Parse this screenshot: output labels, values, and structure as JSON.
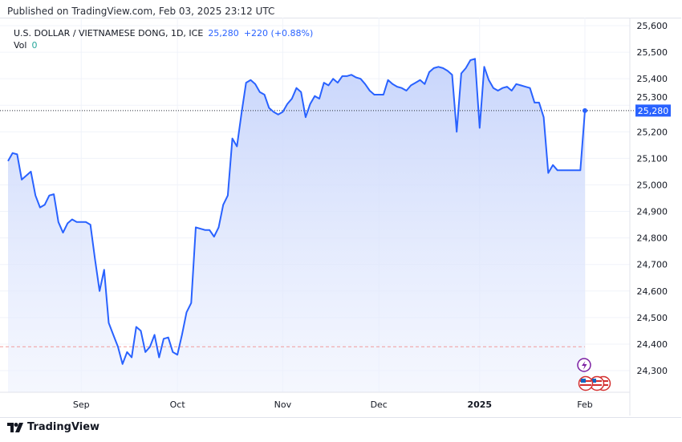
{
  "published": "Published on TradingView.com, Feb 03, 2025 23:12 UTC",
  "legend": {
    "symbol": "U.S. DOLLAR / VIETNAMESE DONG, 1D, ICE",
    "price": "25,280",
    "change": "+220 (+0.88%)",
    "vol_label": "Vol",
    "vol_value": "0"
  },
  "footer": {
    "brand": "TradingView",
    "logo_icon": "tradingview-logo-icon"
  },
  "colors": {
    "line": "#2962ff",
    "fill_top": "#c5d3fb",
    "fill_bottom": "#eef2fe",
    "ref_line": "#ef9a9a",
    "price_badge": "#2962ff"
  },
  "chart_data": {
    "type": "area",
    "title": "U.S. DOLLAR / VIETNAMESE DONG, 1D, ICE",
    "xlabel": "",
    "ylabel": "",
    "ylim": [
      24250,
      25650
    ],
    "grid": true,
    "y_ticks": [
      "24,300",
      "24,400",
      "24,500",
      "24,600",
      "24,700",
      "24,800",
      "24,900",
      "25,000",
      "25,100",
      "25,200",
      "25,300",
      "25,400",
      "25,500",
      "25,600"
    ],
    "y_tick_values": [
      24300,
      24400,
      24500,
      24600,
      24700,
      24800,
      24900,
      25000,
      25100,
      25200,
      25300,
      25400,
      25500,
      25600
    ],
    "x_ticks": [
      {
        "label": "Sep",
        "index": 16
      },
      {
        "label": "Oct",
        "index": 37
      },
      {
        "label": "Nov",
        "index": 60
      },
      {
        "label": "Dec",
        "index": 81
      },
      {
        "label": "2025",
        "index": 103
      },
      {
        "label": "Feb",
        "index": 126
      }
    ],
    "values": [
      25090,
      25120,
      25115,
      25020,
      25035,
      25050,
      24960,
      24915,
      24925,
      24960,
      24965,
      24860,
      24820,
      24855,
      24870,
      24860,
      24860,
      24860,
      24850,
      24720,
      24600,
      24680,
      24480,
      24435,
      24390,
      24325,
      24370,
      24350,
      24465,
      24450,
      24370,
      24390,
      24435,
      24350,
      24420,
      24425,
      24370,
      24360,
      24435,
      24520,
      24555,
      24840,
      24835,
      24830,
      24830,
      24805,
      24840,
      24925,
      24960,
      25175,
      25145,
      25270,
      25385,
      25395,
      25380,
      25350,
      25340,
      25290,
      25275,
      25265,
      25275,
      25305,
      25325,
      25365,
      25350,
      25255,
      25305,
      25335,
      25325,
      25385,
      25375,
      25400,
      25385,
      25410,
      25410,
      25415,
      25405,
      25400,
      25380,
      25355,
      25340,
      25340,
      25340,
      25395,
      25380,
      25370,
      25365,
      25355,
      25375,
      25385,
      25395,
      25380,
      25425,
      25440,
      25445,
      25440,
      25430,
      25415,
      25200,
      25420,
      25440,
      25470,
      25475,
      25215,
      25445,
      25395,
      25365,
      25355,
      25365,
      25370,
      25355,
      25380,
      25375,
      25370,
      25365,
      25310,
      25310,
      25255,
      25045,
      25075,
      25055,
      25055,
      25055,
      25055,
      25055,
      25055,
      25280
    ],
    "last_price": 25280,
    "last_price_label": "25,280",
    "reference_line": 24390,
    "event_icons": [
      "lightning-icon",
      "us-flag-icon",
      "us-flag-icon",
      "us-flag-icon"
    ]
  }
}
